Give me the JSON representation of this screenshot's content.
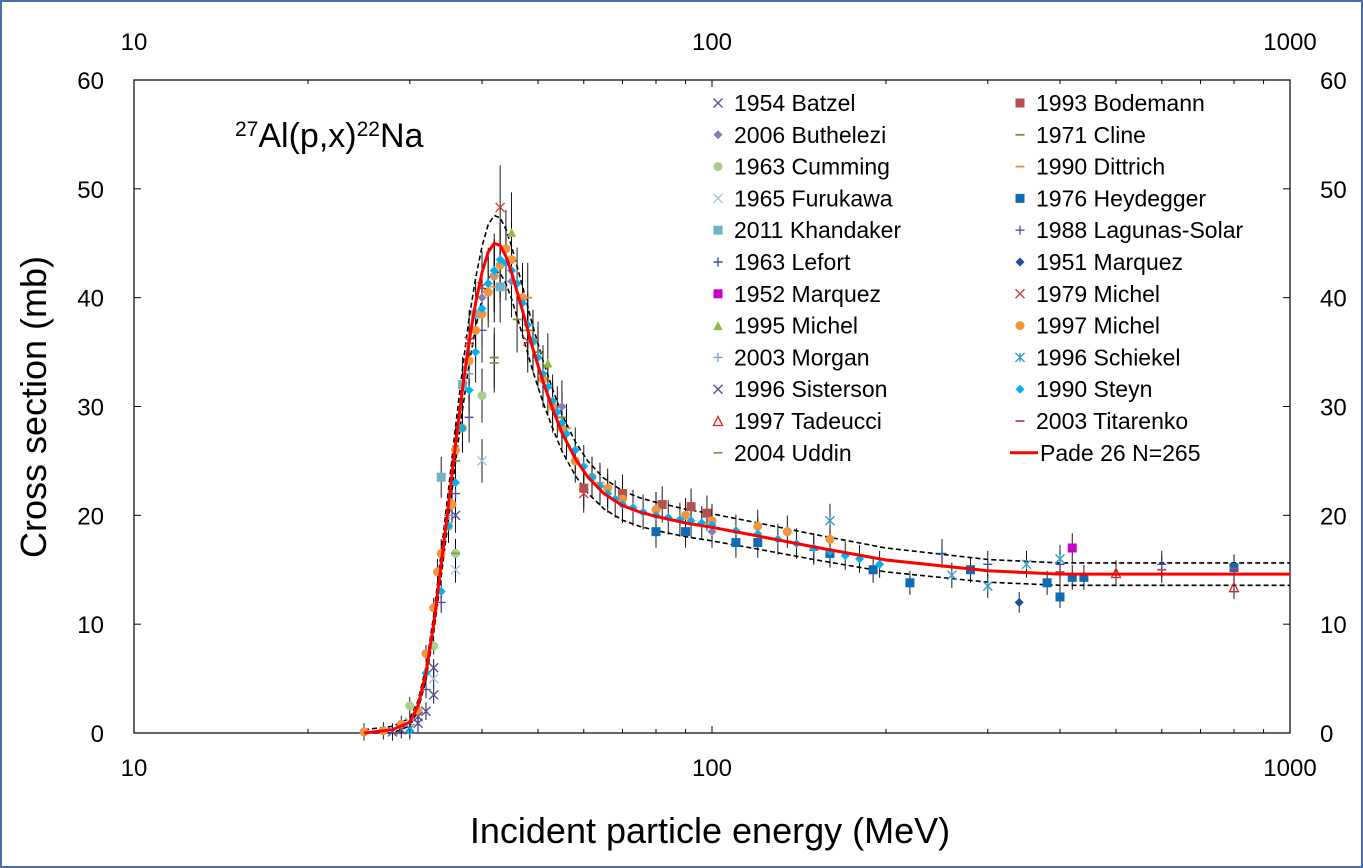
{
  "chart_data": {
    "type": "scatter",
    "title": "",
    "reaction_label": {
      "sup1": "27",
      "main1": "Al(p,x)",
      "sup2": "22",
      "main2": "Na"
    },
    "xlabel": "Incident particle energy (MeV)",
    "ylabel": "Cross section (mb)",
    "xscale": "log",
    "xlim": [
      10,
      1000
    ],
    "ylim": [
      0,
      60
    ],
    "x_ticks": [
      "10",
      "100",
      "1000"
    ],
    "y_ticks": [
      "0",
      "10",
      "20",
      "30",
      "40",
      "50",
      "60"
    ],
    "legend_position": "top-right",
    "fit": {
      "name": "Pade 26 N=265",
      "color": "#ff0000",
      "x": [
        25,
        28,
        30,
        31,
        32,
        33,
        34,
        35,
        36,
        37,
        38,
        39,
        40,
        41,
        42,
        43,
        44,
        45,
        47,
        49,
        51,
        53,
        55,
        58,
        61,
        65,
        70,
        75,
        80,
        90,
        100,
        120,
        150,
        200,
        300,
        400,
        600,
        1000
      ],
      "y": [
        0,
        0.3,
        1.0,
        2.5,
        5.5,
        10,
        15.5,
        21,
        26.5,
        31.5,
        36,
        39.5,
        42.3,
        44.2,
        45.0,
        44.8,
        43.8,
        42.3,
        38.8,
        35.3,
        32.3,
        29.8,
        27.6,
        25.2,
        23.5,
        22.0,
        20.9,
        20.3,
        19.9,
        19.3,
        18.9,
        18.1,
        17.1,
        15.9,
        14.9,
        14.6,
        14.6,
        14.6
      ]
    },
    "band_offsets": {
      "lower": [
        0.05,
        0.04
      ],
      "upper": [
        0.05,
        0.04
      ]
    },
    "series": [
      {
        "name": "1954 Batzel",
        "marker": "x",
        "color": "#5a4f9c",
        "points": [
          [
            28,
            0.1
          ],
          [
            30,
            0.4
          ],
          [
            31,
            0.9
          ],
          [
            32,
            2.0
          ],
          [
            33,
            3.5
          ]
        ]
      },
      {
        "name": "1993 Bodemann",
        "marker": "square",
        "color": "#b64f4f",
        "points": [
          [
            60,
            22.5
          ],
          [
            70,
            22.0
          ],
          [
            82,
            21.0
          ],
          [
            92,
            20.8
          ],
          [
            98,
            20.2
          ]
        ]
      },
      {
        "name": "2006 Buthelezi",
        "marker": "diamond",
        "color": "#8b7ab8",
        "points": [
          [
            40,
            40.0
          ],
          [
            45,
            41.5
          ],
          [
            55,
            30.0
          ],
          [
            70,
            21.0
          ],
          [
            100,
            18.5
          ]
        ]
      },
      {
        "name": "1971 Cline",
        "marker": "dash",
        "color": "#7a8a3a",
        "points": [
          [
            36,
            25
          ],
          [
            42,
            34.5
          ],
          [
            46,
            38
          ],
          [
            50,
            35
          ],
          [
            55,
            29
          ]
        ]
      },
      {
        "name": "1963 Cumming",
        "marker": "circle",
        "color": "#a9cf8f",
        "points": [
          [
            30,
            2.5
          ],
          [
            33,
            8.0
          ],
          [
            36,
            16.5
          ],
          [
            40,
            31
          ]
        ]
      },
      {
        "name": "1990 Dittrich",
        "marker": "dash",
        "color": "#f08c3c",
        "points": [
          [
            42,
            41
          ],
          [
            48,
            40
          ],
          [
            56,
            28
          ],
          [
            64,
            23
          ],
          [
            80,
            20.5
          ]
        ]
      },
      {
        "name": "1965 Furukawa",
        "marker": "x",
        "color": "#a8c4e0",
        "points": [
          [
            30,
            1.0
          ],
          [
            33,
            5.0
          ],
          [
            36,
            15
          ],
          [
            40,
            25
          ]
        ]
      },
      {
        "name": "1976 Heydegger",
        "marker": "square",
        "color": "#0f6bb4",
        "points": [
          [
            80,
            18.5
          ],
          [
            90,
            18.5
          ],
          [
            110,
            17.5
          ],
          [
            120,
            17.5
          ],
          [
            160,
            16.5
          ],
          [
            190,
            15.0
          ],
          [
            220,
            13.8
          ],
          [
            280,
            15.0
          ],
          [
            380,
            13.8
          ],
          [
            400,
            12.5
          ],
          [
            420,
            14.3
          ],
          [
            440,
            14.3
          ],
          [
            800,
            15.2
          ]
        ]
      },
      {
        "name": "2011 Khandaker",
        "marker": "square",
        "color": "#6fb3c8",
        "points": [
          [
            34,
            23.5
          ],
          [
            37,
            32
          ],
          [
            39,
            38.5
          ],
          [
            43,
            41
          ]
        ]
      },
      {
        "name": "1988 Lagunas-Solar",
        "marker": "plus",
        "color": "#5a4f9c",
        "points": [
          [
            32,
            4
          ],
          [
            34,
            12
          ],
          [
            36,
            22
          ],
          [
            38,
            29
          ],
          [
            40,
            37
          ]
        ]
      },
      {
        "name": "1963 Lefort",
        "marker": "plus",
        "color": "#2f55a4",
        "points": [
          [
            150,
            16.8
          ],
          [
            250,
            16.5
          ],
          [
            300,
            15.5
          ],
          [
            400,
            15.5
          ],
          [
            600,
            15.5
          ]
        ]
      },
      {
        "name": "1951 Marquez",
        "marker": "diamond",
        "color": "#1f4f8c",
        "points": [
          [
            340,
            12.0
          ]
        ]
      },
      {
        "name": "1952 Marquez",
        "marker": "square",
        "color": "#cc00cc",
        "points": [
          [
            420,
            17.0
          ]
        ]
      },
      {
        "name": "1979 Michel",
        "marker": "x",
        "color": "#d04040",
        "points": [
          [
            38,
            36
          ],
          [
            40,
            41
          ],
          [
            43,
            48.3
          ],
          [
            48,
            36
          ],
          [
            60,
            22
          ]
        ]
      },
      {
        "name": "1995 Michel",
        "marker": "triangle",
        "color": "#8fbc3f",
        "points": [
          [
            45,
            46
          ],
          [
            52,
            34
          ]
        ]
      },
      {
        "name": "1997 Michel",
        "marker": "circle",
        "color": "#f0963c",
        "points": [
          [
            25,
            0.1
          ],
          [
            27,
            0.2
          ],
          [
            29,
            0.8
          ],
          [
            31,
            2.0
          ],
          [
            32,
            7.3
          ],
          [
            33,
            11.5
          ],
          [
            33.5,
            14.8
          ],
          [
            34,
            16.5
          ],
          [
            35,
            19
          ],
          [
            35.5,
            21
          ],
          [
            36,
            26
          ],
          [
            37,
            28
          ],
          [
            38,
            34.2
          ],
          [
            39,
            37
          ],
          [
            40,
            38.5
          ],
          [
            41,
            40.5
          ],
          [
            42,
            42
          ],
          [
            43,
            43
          ],
          [
            44,
            44.5
          ],
          [
            45,
            43.5
          ],
          [
            47,
            40
          ],
          [
            49,
            36
          ],
          [
            51,
            32.5
          ],
          [
            53,
            30
          ],
          [
            55,
            28
          ],
          [
            58,
            25
          ],
          [
            62,
            23.5
          ],
          [
            66,
            22.5
          ],
          [
            70,
            21.5
          ],
          [
            80,
            20.5
          ],
          [
            90,
            20
          ],
          [
            100,
            19.5
          ],
          [
            120,
            19
          ],
          [
            135,
            18.5
          ],
          [
            160,
            17.8
          ]
        ]
      },
      {
        "name": "2003 Morgan",
        "marker": "plus",
        "color": "#7a9cd4",
        "points": [
          [
            35,
            20
          ],
          [
            38,
            33
          ],
          [
            42,
            42
          ]
        ]
      },
      {
        "name": "1996 Schiekel",
        "marker": "asterisk",
        "color": "#3a9bc4",
        "points": [
          [
            160,
            19.5
          ],
          [
            260,
            14.5
          ],
          [
            300,
            13.5
          ],
          [
            350,
            15.5
          ],
          [
            400,
            16.0
          ]
        ]
      },
      {
        "name": "1996 Sisterson",
        "marker": "x",
        "color": "#5a4f9c",
        "points": [
          [
            29,
            0.3
          ],
          [
            31,
            1.5
          ],
          [
            33,
            6
          ],
          [
            36,
            20
          ]
        ]
      },
      {
        "name": "1990 Steyn",
        "marker": "diamond",
        "color": "#00b0f0",
        "points": [
          [
            30,
            0.2
          ],
          [
            32,
            5.5
          ],
          [
            34,
            13
          ],
          [
            35,
            19
          ],
          [
            36,
            23
          ],
          [
            37,
            28
          ],
          [
            38,
            31.5
          ],
          [
            39,
            35
          ],
          [
            40,
            39
          ],
          [
            41,
            41.3
          ],
          [
            42,
            42.5
          ],
          [
            43,
            43.5
          ],
          [
            44,
            43.2
          ],
          [
            45,
            42.5
          ],
          [
            46,
            41.3
          ],
          [
            47,
            39.5
          ],
          [
            48,
            37.5
          ],
          [
            49,
            36
          ],
          [
            50,
            34.5
          ],
          [
            51,
            33
          ],
          [
            52,
            31.8
          ],
          [
            53,
            30.5
          ],
          [
            54,
            29.5
          ],
          [
            55,
            28.5
          ],
          [
            56,
            27.5
          ],
          [
            58,
            26
          ],
          [
            60,
            24.5
          ],
          [
            62,
            23.5
          ],
          [
            64,
            22.7
          ],
          [
            66,
            22
          ],
          [
            68,
            21.5
          ],
          [
            70,
            21
          ],
          [
            73,
            20.7
          ],
          [
            76,
            20.3
          ],
          [
            80,
            20
          ],
          [
            84,
            19.8
          ],
          [
            88,
            19.6
          ],
          [
            92,
            19.5
          ],
          [
            96,
            19.3
          ],
          [
            100,
            19.1
          ],
          [
            110,
            18.6
          ],
          [
            120,
            18.3
          ],
          [
            130,
            17.8
          ],
          [
            140,
            17.4
          ],
          [
            150,
            17.0
          ],
          [
            160,
            16.7
          ],
          [
            170,
            16.3
          ],
          [
            180,
            16.0
          ],
          [
            195,
            15.5
          ]
        ]
      },
      {
        "name": "1997 Tadeucci",
        "marker": "triangle-open",
        "color": "#e02020",
        "points": [
          [
            500,
            14.7
          ],
          [
            800,
            13.4
          ]
        ]
      },
      {
        "name": "2003 Titarenko",
        "marker": "dash",
        "color": "#c04070",
        "points": [
          [
            400,
            14.8
          ],
          [
            600,
            15
          ],
          [
            800,
            15.1
          ]
        ]
      },
      {
        "name": "2004 Uddin",
        "marker": "dash",
        "color": "#7a9c5a",
        "points": [
          [
            36,
            16.5
          ],
          [
            42,
            34
          ],
          [
            48,
            37
          ]
        ]
      }
    ],
    "legend": [
      [
        "1954 Batzel",
        "1993 Bodemann"
      ],
      [
        "2006 Buthelezi",
        "1971 Cline"
      ],
      [
        "1963 Cumming",
        "1990 Dittrich"
      ],
      [
        "1965 Furukawa",
        "1976 Heydegger"
      ],
      [
        "2011 Khandaker",
        "1988 Lagunas-Solar"
      ],
      [
        "1963 Lefort",
        "1951 Marquez"
      ],
      [
        "1952 Marquez",
        "1979 Michel"
      ],
      [
        "1995 Michel",
        "1997 Michel"
      ],
      [
        "2003 Morgan",
        "1996 Schiekel"
      ],
      [
        "1996 Sisterson",
        "1990 Steyn"
      ],
      [
        "1997 Tadeucci",
        "2003 Titarenko"
      ],
      [
        "2004 Uddin",
        "Pade 26 N=265"
      ]
    ]
  }
}
